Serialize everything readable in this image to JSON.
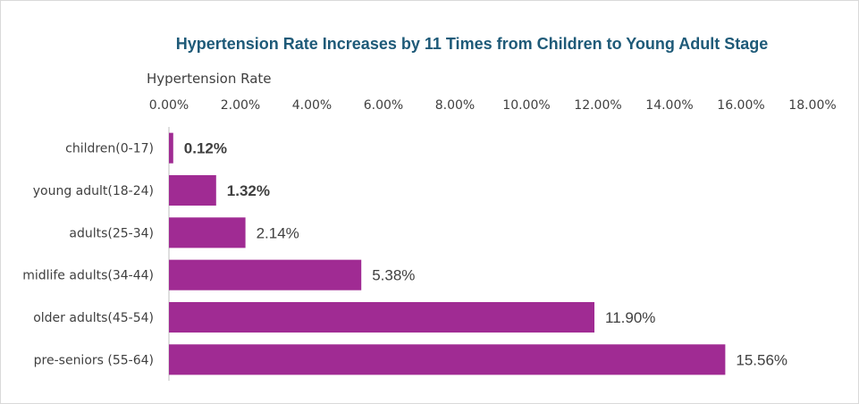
{
  "chart_data": {
    "type": "bar",
    "orientation": "horizontal",
    "title": "Hypertension Rate Increases by 11 Times from Children to Young Adult Stage",
    "xlabel": "Hypertension Rate",
    "ylabel": "",
    "xlim": [
      0,
      18
    ],
    "x_ticks": [
      "0.00%",
      "2.00%",
      "4.00%",
      "6.00%",
      "8.00%",
      "10.00%",
      "12.00%",
      "14.00%",
      "16.00%",
      "18.00%"
    ],
    "x_axis_position": "top",
    "grid": false,
    "categories": [
      "children(0-17)",
      "young adult(18-24)",
      "adults(25-34)",
      "midlife adults(34-44)",
      "older adults(45-54)",
      "pre-seniors (55-64)"
    ],
    "values": [
      0.12,
      1.32,
      2.14,
      5.38,
      11.9,
      15.56
    ],
    "data_labels": [
      "0.12%",
      "1.32%",
      "2.14%",
      "5.38%",
      "11.90%",
      "15.56%"
    ],
    "bold_labels": [
      true,
      true,
      false,
      false,
      false,
      false
    ],
    "bar_color": "#a02b93"
  }
}
